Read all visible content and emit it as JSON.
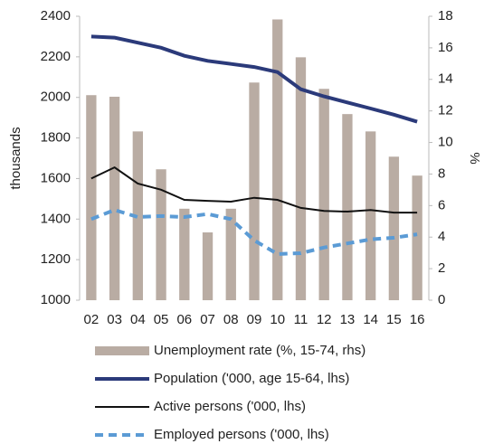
{
  "chart_data": {
    "type": "combo",
    "categories": [
      "02",
      "03",
      "04",
      "05",
      "06",
      "07",
      "08",
      "09",
      "10",
      "11",
      "12",
      "13",
      "14",
      "15",
      "16"
    ],
    "y_label": "thousands",
    "y2_label": "%",
    "ylim": [
      1000,
      2400
    ],
    "yticks": [
      1000,
      1200,
      1400,
      1600,
      1800,
      2000,
      2200,
      2400
    ],
    "y2lim": [
      0,
      18
    ],
    "y2ticks": [
      0,
      2,
      4,
      6,
      8,
      10,
      12,
      14,
      16,
      18
    ],
    "grid": false,
    "legend": "bottom",
    "series": [
      {
        "name": "Unemployment rate (%, 15-74, rhs)",
        "type": "bar",
        "axis": "y2",
        "color": "#b9aca3",
        "values": [
          13.0,
          12.9,
          10.7,
          8.3,
          5.8,
          4.3,
          5.8,
          13.8,
          17.8,
          15.4,
          13.4,
          11.8,
          10.7,
          9.1,
          7.9
        ]
      },
      {
        "name": "Population ('000, age 15-64, lhs)",
        "type": "line",
        "color": "#2b3a7a",
        "values": [
          2300,
          2295,
          2270,
          2245,
          2205,
          2180,
          2165,
          2150,
          2125,
          2040,
          2005,
          1975,
          1945,
          1915,
          1880
        ]
      },
      {
        "name": "Active persons ('000, lhs)",
        "type": "line",
        "color": "#111111",
        "values": [
          1600,
          1655,
          1575,
          1545,
          1495,
          1490,
          1486,
          1505,
          1495,
          1455,
          1440,
          1437,
          1445,
          1432,
          1432
        ]
      },
      {
        "name": "Employed persons ('000, lhs)",
        "type": "line",
        "color": "#5b9bd5",
        "dashed": true,
        "values": [
          1400,
          1445,
          1410,
          1415,
          1410,
          1425,
          1400,
          1295,
          1228,
          1232,
          1260,
          1280,
          1300,
          1308,
          1325
        ]
      }
    ]
  }
}
